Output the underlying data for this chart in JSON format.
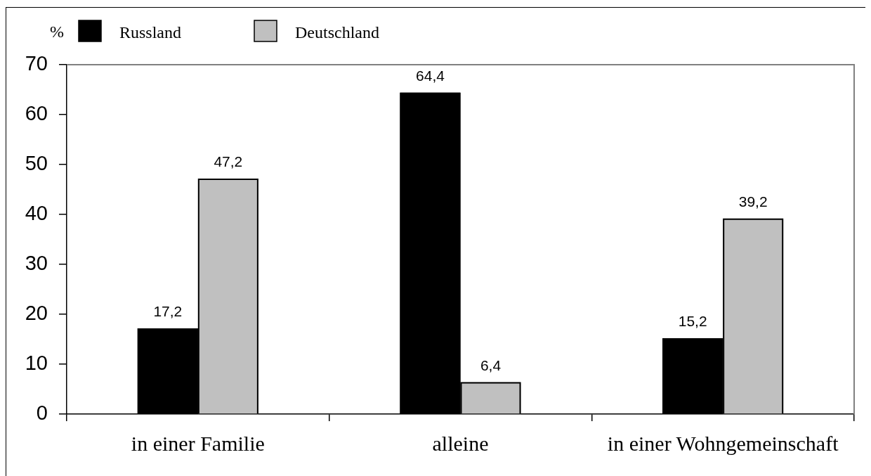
{
  "chart_data": {
    "type": "bar",
    "ylabel": "%",
    "categories": [
      "in einer Familie",
      "alleine",
      "in einer Wohngemeinschaft"
    ],
    "series": [
      {
        "name": "Russland",
        "color": "#000000",
        "values": [
          17.2,
          64.4,
          15.2
        ],
        "value_labels": [
          "17,2",
          "64,4",
          "15,2"
        ]
      },
      {
        "name": "Deutschland",
        "color": "#c0c0c0",
        "values": [
          47.2,
          6.4,
          39.2
        ],
        "value_labels": [
          "47,2",
          "6,4",
          "39,2"
        ]
      }
    ],
    "ylim": [
      0,
      70
    ],
    "yticks": [
      0,
      10,
      20,
      30,
      40,
      50,
      60,
      70
    ],
    "grid": false,
    "legend": "top left"
  }
}
